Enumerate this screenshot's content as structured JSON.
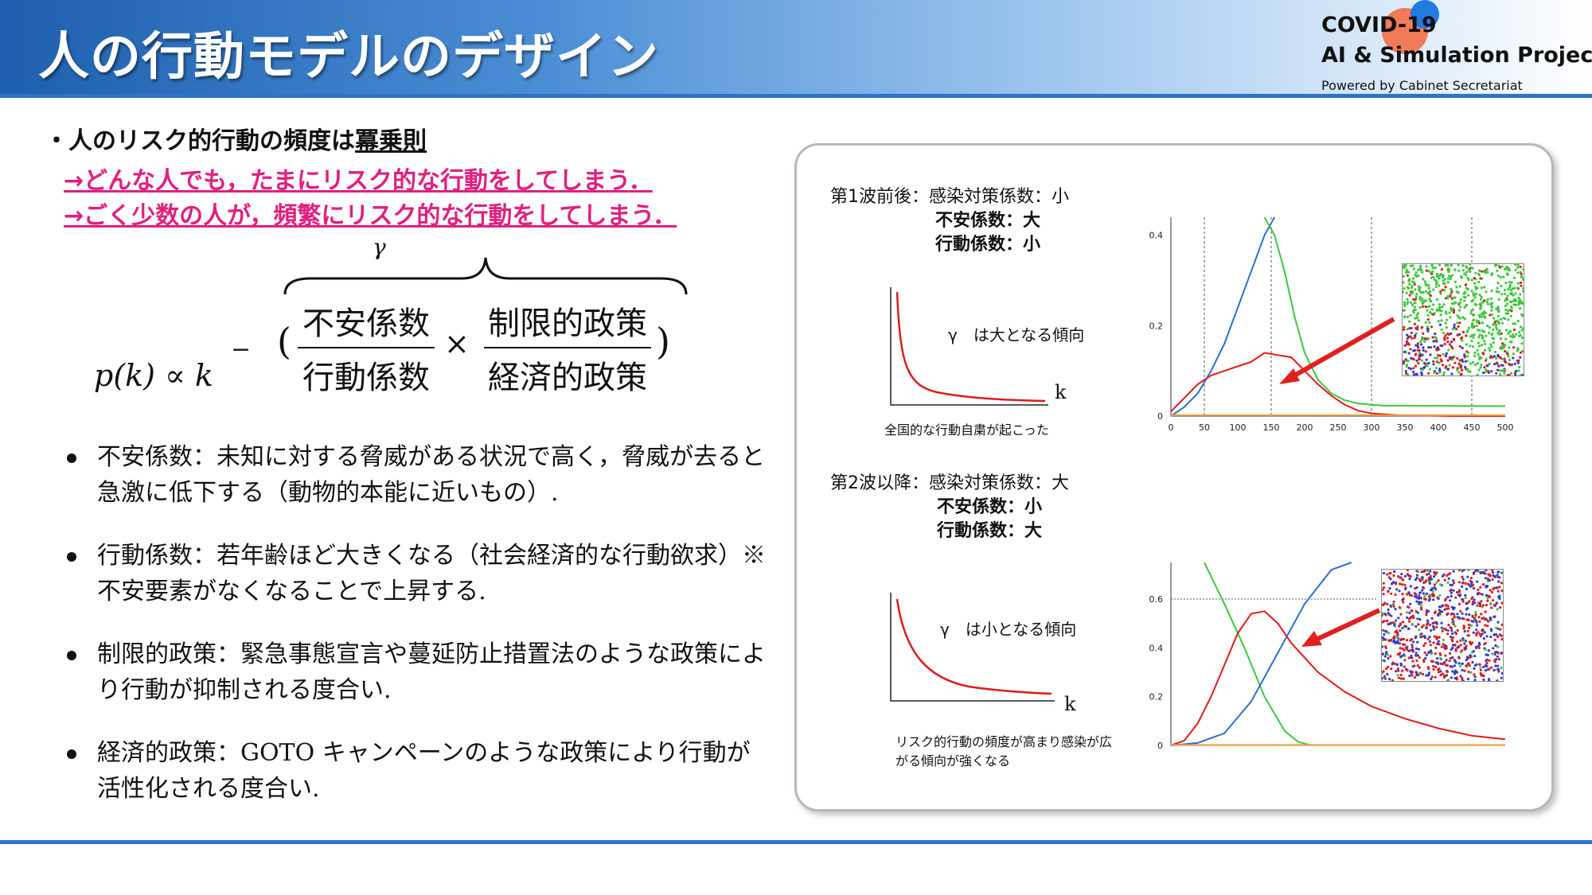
{
  "title": "人の行動モデルのデザイン",
  "logo": {
    "line1": "COVID-19",
    "line2": "AI & Simulation Project",
    "line3": "Powered by Cabinet Secretariat"
  },
  "bullet": {
    "prefix": "・人のリスク的行動の頻度は",
    "emphasis": "冪乗則"
  },
  "arrows": [
    "→どんな人でも，たまにリスク的な行動をしてしまう．",
    "→ごく少数の人が，頻繁にリスク的な行動をしてしまう．"
  ],
  "formula": {
    "lhs": "p(k) ∝ k",
    "minus": "−",
    "gamma": "γ",
    "num1": "不安係数",
    "den1": "行動係数",
    "times": "×",
    "num2": "制限的政策",
    "den2": "経済的政策",
    "open_paren": "(",
    "close_paren": ")"
  },
  "list": [
    {
      "text": "不安係数：未知に対する脅威がある状況で高く，脅威が去ると急激に低下する（動物的本能に近いもの）."
    },
    {
      "text": "行動係数：若年齢ほど大きくなる（社会経済的な行動欲求）※不安要素がなくなることで上昇する."
    },
    {
      "text": "制限的政策：緊急事態宣言や蔓延防止措置法のような政策により行動が抑制される度合い."
    },
    {
      "text": "経済的政策：GOTO キャンペーンのような政策により行動が活性化される度合い."
    }
  ],
  "panel": {
    "wave1": {
      "title": "第1波前後：感染対策係数：小",
      "line2": "不安係数：大",
      "line3": "行動係数：小",
      "gamma_note": "γ　は大となる傾向",
      "k": "k",
      "caption": "全国的な行動自粛が起こった"
    },
    "wave2": {
      "title": "第2波以降：感染対策係数：大",
      "line2": "不安係数：小",
      "line3": "行動係数：大",
      "gamma_note": "γ　は小となる傾向",
      "k": "k",
      "caption_line1": "リスク的行動の頻度が高まり感染が広",
      "caption_line2": "がる傾向が強くなる"
    }
  },
  "chart_data": [
    {
      "type": "line",
      "x_ticks": [
        "0",
        "50",
        "100",
        "150",
        "200",
        "250",
        "300",
        "350",
        "400",
        "450",
        "500"
      ],
      "y_ticks": [
        "0",
        "0.2",
        "0.4"
      ],
      "xlim": [
        0,
        500
      ],
      "ylim": [
        0,
        0.44
      ],
      "vlines": [
        50,
        150,
        300,
        450
      ],
      "series": [
        {
          "color": "#2a6fcf",
          "x": [
            0,
            20,
            40,
            60,
            80,
            100,
            120,
            140,
            155
          ],
          "y": [
            0,
            0.02,
            0.05,
            0.1,
            0.16,
            0.24,
            0.32,
            0.4,
            0.44
          ]
        },
        {
          "color": "#e01b1b",
          "x": [
            0,
            20,
            40,
            60,
            80,
            100,
            120,
            140,
            160,
            180,
            200,
            220,
            240,
            260,
            280,
            300,
            340,
            380,
            420,
            500
          ],
          "y": [
            0.01,
            0.04,
            0.07,
            0.09,
            0.1,
            0.11,
            0.12,
            0.14,
            0.135,
            0.13,
            0.1,
            0.07,
            0.045,
            0.025,
            0.012,
            0.006,
            0.002,
            0.001,
            0,
            0
          ]
        },
        {
          "color": "#3cc83c",
          "x": [
            140,
            155,
            170,
            185,
            200,
            220,
            240,
            260,
            280,
            300,
            320,
            500
          ],
          "y": [
            0.44,
            0.4,
            0.32,
            0.22,
            0.14,
            0.08,
            0.05,
            0.035,
            0.028,
            0.025,
            0.023,
            0.022
          ]
        },
        {
          "color": "#f0a040",
          "x": [
            0,
            500
          ],
          "y": [
            0.002,
            0.002
          ]
        }
      ]
    },
    {
      "type": "line",
      "y_ticks": [
        "0",
        "0.2",
        "0.4",
        "0.6"
      ],
      "ylim": [
        0,
        0.75
      ],
      "xlim": [
        0,
        500
      ],
      "hline": 0.6,
      "series": [
        {
          "color": "#3cc83c",
          "x": [
            50,
            80,
            110,
            140,
            170,
            190,
            210
          ],
          "y": [
            0.75,
            0.58,
            0.4,
            0.2,
            0.06,
            0.015,
            0
          ]
        },
        {
          "color": "#e01b1b",
          "x": [
            0,
            20,
            40,
            60,
            80,
            100,
            120,
            140,
            160,
            180,
            220,
            260,
            300,
            350,
            400,
            450,
            500
          ],
          "y": [
            0,
            0.02,
            0.09,
            0.2,
            0.33,
            0.46,
            0.54,
            0.55,
            0.5,
            0.42,
            0.3,
            0.22,
            0.16,
            0.11,
            0.07,
            0.04,
            0.025
          ]
        },
        {
          "color": "#2a6fcf",
          "x": [
            0,
            40,
            80,
            120,
            160,
            200,
            240,
            270
          ],
          "y": [
            0,
            0.01,
            0.05,
            0.18,
            0.38,
            0.58,
            0.72,
            0.75
          ]
        },
        {
          "color": "#f0a040",
          "x": [
            0,
            500
          ],
          "y": [
            0.002,
            0.002
          ]
        }
      ]
    }
  ],
  "colors": {
    "header_dark": "#1d5fae",
    "accent_pink": "#e0207f",
    "rule_blue": "#2f73c9",
    "arrow_red": "#e02020"
  }
}
